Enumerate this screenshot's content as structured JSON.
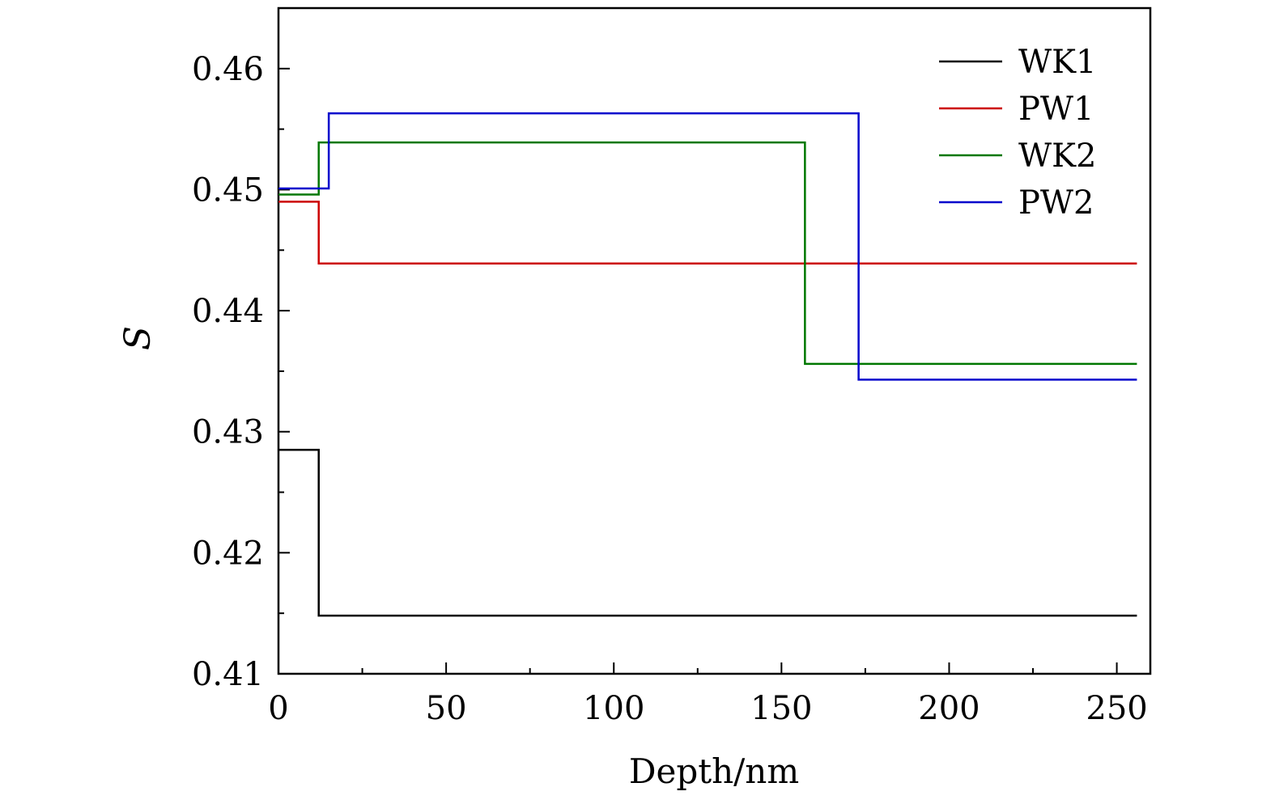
{
  "chart_data": {
    "type": "line",
    "step": true,
    "title": "",
    "xlabel": "Depth/nm",
    "ylabel": "S",
    "xlim": [
      0,
      260
    ],
    "ylim": [
      0.41,
      0.465
    ],
    "x_ticks": [
      0,
      50,
      100,
      150,
      200,
      250
    ],
    "x_tick_labels": [
      "0",
      "50",
      "100",
      "150",
      "200",
      "250"
    ],
    "x_minor_step": 25,
    "y_ticks": [
      0.41,
      0.42,
      0.43,
      0.44,
      0.45,
      0.46
    ],
    "y_tick_labels": [
      "0.41",
      "0.42",
      "0.43",
      "0.44",
      "0.45",
      "0.46"
    ],
    "y_minor_step": 0.005,
    "grid": false,
    "legend": "top-right",
    "series": [
      {
        "name": "WK1",
        "color": "#000000",
        "points": [
          [
            0,
            0.4285
          ],
          [
            12,
            0.4285
          ],
          [
            12,
            0.4148
          ],
          [
            256,
            0.4148
          ]
        ]
      },
      {
        "name": "PW1",
        "color": "#cc0000",
        "points": [
          [
            0,
            0.449
          ],
          [
            12,
            0.449
          ],
          [
            12,
            0.4439
          ],
          [
            256,
            0.4439
          ]
        ]
      },
      {
        "name": "WK2",
        "color": "#007700",
        "points": [
          [
            0,
            0.4496
          ],
          [
            12,
            0.4496
          ],
          [
            12,
            0.4539
          ],
          [
            157,
            0.4539
          ],
          [
            157,
            0.4356
          ],
          [
            256,
            0.4356
          ]
        ]
      },
      {
        "name": "PW2",
        "color": "#0000cc",
        "points": [
          [
            0,
            0.4501
          ],
          [
            15,
            0.4501
          ],
          [
            15,
            0.4563
          ],
          [
            173,
            0.4563
          ],
          [
            173,
            0.4343
          ],
          [
            256,
            0.4343
          ]
        ]
      }
    ]
  }
}
